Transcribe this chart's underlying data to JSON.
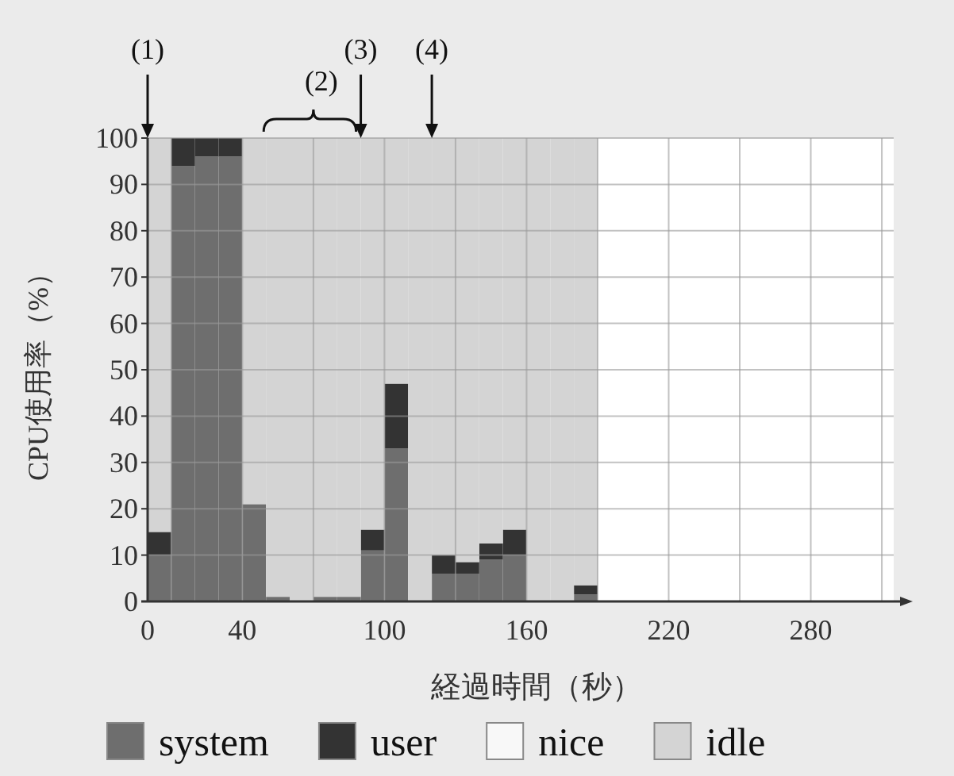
{
  "chart_data": {
    "type": "bar",
    "stacked": true,
    "xlabel": "経過時間（秒）",
    "ylabel": "CPU使用率（%）",
    "x": [
      5,
      15,
      25,
      35,
      45,
      55,
      65,
      75,
      85,
      95,
      105,
      115,
      125,
      135,
      145,
      155,
      165,
      175,
      185
    ],
    "series": [
      {
        "name": "system",
        "color": "#6e6e6e",
        "values": [
          10,
          94,
          96,
          96,
          21,
          1,
          null,
          1,
          1,
          11,
          33,
          null,
          6,
          6,
          9,
          10,
          null,
          null,
          1.5
        ]
      },
      {
        "name": "user",
        "color": "#333333",
        "values": [
          5,
          6,
          4,
          4,
          0,
          0,
          0,
          0,
          0,
          4.5,
          14,
          0,
          4,
          2.5,
          3.5,
          5.5,
          0,
          0,
          2
        ]
      },
      {
        "name": "nice",
        "color": "#f8f8f8",
        "values": [
          0,
          0,
          0,
          0,
          0,
          0,
          0,
          0,
          0,
          0,
          0,
          0,
          0,
          0,
          0,
          0,
          0,
          0,
          0
        ]
      },
      {
        "name": "idle",
        "color": "#d4d4d4",
        "values": [
          85,
          0,
          0,
          0,
          79,
          99,
          100,
          99,
          99,
          84.5,
          53,
          100,
          90,
          91.5,
          87.5,
          84.5,
          100,
          100,
          96.5
        ]
      }
    ],
    "xlim": [
      0,
      315
    ],
    "ylim": [
      0,
      100
    ],
    "xticks": [
      0,
      {
        "value": 10,
        "label": null
      },
      40,
      {
        "value": 70,
        "label": null
      },
      100,
      {
        "value": 130,
        "label": null
      },
      160,
      {
        "value": 190,
        "label": null
      },
      220,
      {
        "value": 250,
        "label": null
      },
      280,
      {
        "value": 310,
        "label": null
      }
    ],
    "yticks": [
      0,
      10,
      20,
      30,
      40,
      50,
      60,
      70,
      80,
      90,
      100
    ],
    "grid": true,
    "legend": "bottom",
    "annotations": [
      {
        "text": "(1)",
        "x": 0,
        "y": 100
      },
      {
        "text": "(2)",
        "x": 70,
        "y": 100
      },
      {
        "text": "(3)",
        "x": 90,
        "y": 100
      },
      {
        "text": "(4)",
        "x": 120,
        "y": 100
      }
    ]
  }
}
